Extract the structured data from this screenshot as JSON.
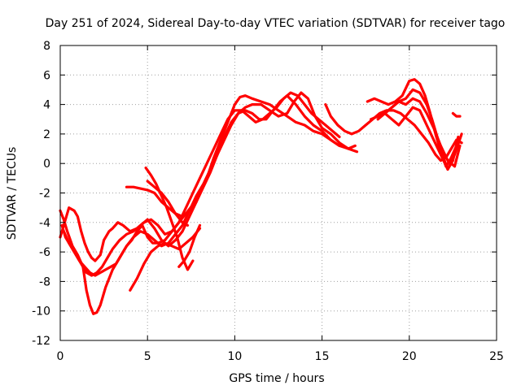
{
  "chart_data": {
    "type": "scatter",
    "title": "Day 251 of 2024, Sidereal Day-to-day VTEC variation (SDTVAR) for receiver tago",
    "xlabel": "GPS time / hours",
    "ylabel": "SDTVAR / TECUs",
    "xlim": [
      0,
      25
    ],
    "ylim": [
      -12,
      8
    ],
    "xticks": [
      "0",
      "5",
      "10",
      "15",
      "20",
      "25"
    ],
    "yticks": [
      "-12",
      "-10",
      "-8",
      "-6",
      "-4",
      "-2",
      "0",
      "2",
      "4",
      "6",
      "8"
    ],
    "grid": true,
    "marker": "+",
    "color": "#ff0000",
    "series": [
      {
        "x": [
          0.0,
          0.2,
          0.5,
          0.8,
          1.0,
          1.2,
          1.4,
          1.6,
          1.8,
          2.0,
          2.3,
          2.5,
          2.8,
          3.0,
          3.3,
          3.6,
          4.0,
          4.4,
          4.8,
          5.2,
          5.6,
          6.0,
          6.4,
          6.8,
          7.2,
          7.6,
          8.0,
          8.4,
          8.8,
          9.2,
          9.6,
          10.0,
          10.3,
          10.6,
          11.0,
          11.5,
          12.0,
          12.5,
          13.0,
          13.5,
          14.0,
          14.5,
          15.0,
          15.5,
          16.0,
          16.5,
          16.9
        ],
        "y": [
          -5.0,
          -4.2,
          -3.0,
          -3.2,
          -3.6,
          -4.6,
          -5.4,
          -6.0,
          -6.4,
          -6.6,
          -6.2,
          -5.2,
          -4.6,
          -4.4,
          -4.0,
          -4.2,
          -4.6,
          -4.4,
          -4.0,
          -3.8,
          -4.2,
          -4.8,
          -4.6,
          -4.0,
          -3.4,
          -2.8,
          -2.0,
          -1.0,
          0.4,
          1.6,
          2.8,
          4.0,
          4.5,
          4.6,
          4.4,
          4.2,
          4.0,
          3.6,
          3.2,
          2.8,
          2.6,
          2.2,
          2.0,
          1.6,
          1.2,
          1.0,
          1.2
        ]
      },
      {
        "x": [
          0.0,
          0.2,
          0.4,
          0.7,
          1.0,
          1.3,
          1.5,
          1.7,
          1.9,
          2.1,
          2.3,
          2.6,
          3.0,
          3.4,
          3.8,
          4.2,
          4.6,
          5.0,
          5.4,
          5.8,
          6.2,
          6.6,
          7.0,
          7.4,
          7.8,
          8.2,
          8.6,
          9.0,
          9.4,
          9.8,
          10.2,
          10.6,
          11.0,
          11.5,
          12.0,
          12.5,
          13.0,
          13.4,
          13.8,
          14.2,
          14.6,
          15.0,
          15.5,
          16.0,
          16.5,
          17.0
        ],
        "y": [
          -3.2,
          -3.8,
          -4.6,
          -5.6,
          -6.2,
          -7.0,
          -8.6,
          -9.6,
          -10.2,
          -10.1,
          -9.6,
          -8.4,
          -7.2,
          -6.4,
          -5.6,
          -5.0,
          -4.6,
          -4.8,
          -5.2,
          -5.6,
          -5.4,
          -4.8,
          -4.2,
          -3.2,
          -2.2,
          -1.4,
          -0.4,
          0.6,
          1.6,
          2.6,
          3.4,
          3.8,
          4.0,
          4.0,
          3.6,
          3.2,
          3.4,
          4.2,
          4.8,
          4.4,
          3.2,
          2.4,
          2.0,
          1.4,
          1.0,
          0.8
        ]
      },
      {
        "x": [
          0.1,
          0.3,
          0.6,
          0.9,
          1.2,
          1.5,
          1.8,
          2.1,
          2.4,
          2.7,
          3.0,
          3.4,
          3.8,
          4.2,
          4.6,
          5.0,
          5.4,
          5.8,
          6.2,
          6.6,
          7.0,
          7.4,
          7.8,
          8.2,
          8.6,
          9.0,
          9.4,
          9.8,
          10.2,
          10.6,
          11.0,
          11.4,
          11.8,
          12.2,
          12.6,
          13.0,
          13.5,
          14.0,
          14.5,
          15.0,
          15.5,
          16.0
        ],
        "y": [
          -4.2,
          -5.0,
          -5.6,
          -6.2,
          -6.8,
          -7.4,
          -7.6,
          -7.4,
          -7.0,
          -6.4,
          -5.8,
          -5.2,
          -4.8,
          -4.6,
          -4.2,
          -3.8,
          -4.4,
          -5.2,
          -5.6,
          -5.2,
          -4.6,
          -3.6,
          -2.6,
          -1.6,
          -0.6,
          0.6,
          1.8,
          2.8,
          3.4,
          3.6,
          3.4,
          3.0,
          3.0,
          3.6,
          4.2,
          4.6,
          4.0,
          3.2,
          2.6,
          2.2,
          1.6,
          1.2
        ]
      },
      {
        "x": [
          0.2,
          0.5,
          0.8,
          1.1,
          1.4,
          1.7,
          2.0,
          2.3,
          2.6,
          2.9,
          3.2,
          3.5,
          3.8,
          4.1,
          4.4,
          4.7,
          5.0,
          5.3,
          5.6,
          6.0,
          6.4,
          6.8,
          7.2,
          7.6,
          8.0,
          8.4,
          8.8,
          9.2,
          9.6,
          10.0,
          10.4,
          10.8,
          11.2,
          11.6,
          12.0,
          12.4,
          12.8,
          13.2,
          13.6,
          14.0,
          14.4,
          14.8,
          15.2,
          15.6,
          16.0
        ],
        "y": [
          -4.6,
          -5.4,
          -6.0,
          -6.6,
          -7.0,
          -7.4,
          -7.6,
          -7.4,
          -7.2,
          -7.0,
          -6.8,
          -6.2,
          -5.6,
          -5.2,
          -4.6,
          -4.2,
          -5.0,
          -5.4,
          -5.4,
          -5.2,
          -4.6,
          -4.0,
          -3.0,
          -2.0,
          -1.0,
          0.0,
          1.0,
          2.0,
          3.0,
          3.6,
          3.6,
          3.2,
          2.8,
          3.0,
          3.4,
          3.8,
          4.4,
          4.8,
          4.6,
          4.0,
          3.4,
          3.0,
          2.6,
          2.2,
          1.8
        ]
      },
      {
        "x": [
          4.0,
          4.4,
          4.8,
          5.2,
          5.6,
          6.0,
          6.4,
          6.8,
          7.2,
          7.6,
          8.0
        ],
        "y": [
          -8.6,
          -7.8,
          -6.8,
          -6.0,
          -5.6,
          -5.4,
          -5.6,
          -5.8,
          -5.4,
          -5.0,
          -4.4
        ]
      },
      {
        "x": [
          3.8,
          4.2,
          4.6,
          5.0,
          5.4,
          5.8,
          6.2,
          6.6,
          7.0,
          7.4,
          7.8
        ],
        "y": [
          -1.6,
          -1.6,
          -1.7,
          -1.8,
          -2.0,
          -2.6,
          -3.0,
          -3.4,
          -3.6,
          -3.2,
          -2.6
        ]
      },
      {
        "x": [
          4.9,
          5.2,
          5.5,
          5.8,
          6.1,
          6.4,
          6.7,
          7.0,
          7.3,
          7.6
        ],
        "y": [
          -0.3,
          -0.8,
          -1.4,
          -2.2,
          -3.0,
          -4.0,
          -5.0,
          -6.4,
          -7.2,
          -6.6
        ]
      },
      {
        "x": [
          5.0,
          5.4,
          5.8,
          6.2,
          6.6,
          7.0,
          7.3
        ],
        "y": [
          -1.2,
          -1.6,
          -2.0,
          -2.6,
          -3.4,
          -4.0,
          -4.2
        ]
      },
      {
        "x": [
          6.8,
          7.1,
          7.4,
          7.7,
          8.0
        ],
        "y": [
          -7.0,
          -6.6,
          -6.0,
          -5.0,
          -4.2
        ]
      },
      {
        "x": [
          15.2,
          15.5,
          15.9,
          16.3,
          16.7,
          17.1,
          17.5,
          17.9,
          18.3,
          18.7,
          19.1,
          19.5,
          19.9,
          20.3,
          20.7,
          21.1,
          21.5,
          21.8,
          22.1,
          22.4,
          22.7,
          23.0
        ],
        "y": [
          4.0,
          3.2,
          2.6,
          2.2,
          2.0,
          2.2,
          2.6,
          3.0,
          3.4,
          3.6,
          3.6,
          3.4,
          3.0,
          2.6,
          2.0,
          1.4,
          0.6,
          0.2,
          0.4,
          1.0,
          1.6,
          1.4
        ]
      },
      {
        "x": [
          17.6,
          18.0,
          18.4,
          18.8,
          19.2,
          19.6,
          20.0,
          20.3,
          20.6,
          20.9,
          21.2,
          21.5,
          21.8,
          22.1,
          22.4,
          22.7
        ],
        "y": [
          4.2,
          4.4,
          4.2,
          4.0,
          4.2,
          4.6,
          5.6,
          5.7,
          5.4,
          4.6,
          3.4,
          2.0,
          0.8,
          -0.2,
          0.4,
          1.2
        ]
      },
      {
        "x": [
          17.8,
          18.2,
          18.6,
          19.0,
          19.4,
          19.8,
          20.2,
          20.6,
          21.0,
          21.3,
          21.6,
          21.9,
          22.2,
          22.5,
          22.8
        ],
        "y": [
          3.0,
          3.2,
          3.4,
          3.8,
          4.2,
          4.4,
          5.0,
          4.8,
          4.0,
          3.0,
          1.8,
          0.6,
          -0.4,
          0.2,
          1.8
        ]
      },
      {
        "x": [
          18.2,
          18.6,
          19.0,
          19.4,
          19.8,
          20.2,
          20.6,
          21.0,
          21.4,
          21.8,
          22.2,
          22.6,
          22.9
        ],
        "y": [
          3.0,
          3.4,
          3.8,
          4.2,
          4.0,
          4.4,
          4.2,
          3.4,
          2.4,
          1.2,
          0.2,
          -0.2,
          1.2
        ]
      },
      {
        "x": [
          18.6,
          19.0,
          19.4,
          19.8,
          20.2,
          20.6,
          21.0,
          21.4,
          21.8,
          22.2,
          22.6,
          23.0
        ],
        "y": [
          3.4,
          3.0,
          2.6,
          3.2,
          3.8,
          3.6,
          2.6,
          1.6,
          0.6,
          -0.4,
          0.6,
          2.0
        ]
      },
      {
        "x": [
          22.5,
          22.7,
          22.9
        ],
        "y": [
          3.4,
          3.2,
          3.2
        ]
      }
    ]
  }
}
